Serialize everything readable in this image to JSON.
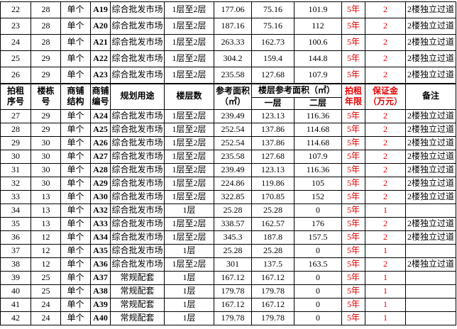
{
  "colors": {
    "accent_red": "#e60000",
    "border": "#000000",
    "text": "#000000",
    "background": "#ffffff"
  },
  "header": {
    "seq": "拍租\n序号",
    "building": "楼栋\n号",
    "structure": "商铺\n结构",
    "shop_no": "商铺\n编号",
    "use": "规划用途",
    "floors": "楼层数",
    "ref_area": "参考面积\n（㎡）",
    "floor_area_span": "楼层参考面积（㎡）",
    "floor1": "一层",
    "floor2": "二层",
    "term": "拍租\n年限",
    "deposit": "保证金\n（万元）",
    "note": "备注"
  },
  "rows_top": [
    [
      "22",
      "28",
      "单个",
      "A19",
      "综合批发市场",
      "1层至2层",
      "177.06",
      "75.16",
      "101.9",
      "5年",
      "2",
      "2楼独立过道"
    ],
    [
      "23",
      "28",
      "单个",
      "A20",
      "综合批发市场",
      "1层至2层",
      "187.16",
      "75.16",
      "112",
      "5年",
      "2",
      "2楼独立过道"
    ],
    [
      "24",
      "28",
      "单个",
      "A21",
      "综合批发市场",
      "1层至2层",
      "263.33",
      "162.73",
      "100.6",
      "5年",
      "2",
      "2楼独立过道"
    ],
    [
      "25",
      "29",
      "单个",
      "A22",
      "综合批发市场",
      "1层至2层",
      "304.2",
      "159.4",
      "144.8",
      "5年",
      "2",
      "2楼独立过道"
    ],
    [
      "26",
      "29",
      "单个",
      "A23",
      "综合批发市场",
      "1层至2层",
      "235.58",
      "127.68",
      "107.9",
      "5年",
      "2",
      "2楼独立过道"
    ]
  ],
  "rows_bottom": [
    [
      "27",
      "29",
      "单个",
      "A24",
      "综合批发市场",
      "1层至2层",
      "239.49",
      "123.13",
      "116.36",
      "5年",
      "2",
      "2楼独立过道"
    ],
    [
      "28",
      "29",
      "单个",
      "A25",
      "综合批发市场",
      "1层至2层",
      "252.54",
      "137.86",
      "114.68",
      "5年",
      "2",
      "2楼独立过道"
    ],
    [
      "29",
      "30",
      "单个",
      "A26",
      "综合批发市场",
      "1层至2层",
      "252.54",
      "137.86",
      "114.68",
      "5年",
      "2",
      "2楼独立过道"
    ],
    [
      "30",
      "30",
      "单个",
      "A27",
      "综合批发市场",
      "1层至2层",
      "235.58",
      "127.68",
      "107.9",
      "5年",
      "2",
      "2楼独立过道"
    ],
    [
      "31",
      "30",
      "单个",
      "A28",
      "综合批发市场",
      "1层至2层",
      "239.49",
      "123.13",
      "116.36",
      "5年",
      "2",
      "2楼独立过道"
    ],
    [
      "32",
      "30",
      "单个",
      "A29",
      "综合批发市场",
      "1层至2层",
      "224.86",
      "119.86",
      "105",
      "5年",
      "2",
      "2楼独立过道"
    ],
    [
      "33",
      "13",
      "单个",
      "A30",
      "综合批发市场",
      "1层至2层",
      "322.85",
      "170.85",
      "152",
      "5年",
      "2",
      "2楼独立过道"
    ],
    [
      "34",
      "13",
      "单个",
      "A32",
      "综合批发市场",
      "1层",
      "25.28",
      "25.28",
      "0",
      "5年",
      "1",
      ""
    ],
    [
      "35",
      "13",
      "单个",
      "A33",
      "综合批发市场",
      "1层至2层",
      "338.57",
      "162.57",
      "176",
      "5年",
      "2",
      "2楼独立过道"
    ],
    [
      "36",
      "12",
      "单个",
      "A34",
      "综合批发市场",
      "1层至2层",
      "345.3",
      "187.8",
      "157.5",
      "5年",
      "2",
      "2楼独立过道"
    ],
    [
      "37",
      "12",
      "单个",
      "A35",
      "综合批发市场",
      "1层",
      "25.28",
      "25.28",
      "0",
      "5年",
      "1",
      ""
    ],
    [
      "38",
      "12",
      "单个",
      "A36",
      "综合批发市场",
      "1层至2层",
      "301",
      "137.5",
      "163.5",
      "5年",
      "2",
      "2楼独立过道"
    ],
    [
      "39",
      "25",
      "单个",
      "A37",
      "常规配套",
      "1层",
      "167.12",
      "167.12",
      "0",
      "5年",
      "1",
      ""
    ],
    [
      "40",
      "25",
      "单个",
      "A38",
      "常规配套",
      "1层",
      "179.78",
      "179.78",
      "0",
      "5年",
      "1",
      ""
    ],
    [
      "41",
      "24",
      "单个",
      "A39",
      "常规配套",
      "1层",
      "167.12",
      "167.12",
      "0",
      "5年",
      "1",
      ""
    ],
    [
      "42",
      "24",
      "单个",
      "A40",
      "常规配套",
      "1层",
      "179.78",
      "179.78",
      "0",
      "5年",
      "1",
      ""
    ]
  ]
}
